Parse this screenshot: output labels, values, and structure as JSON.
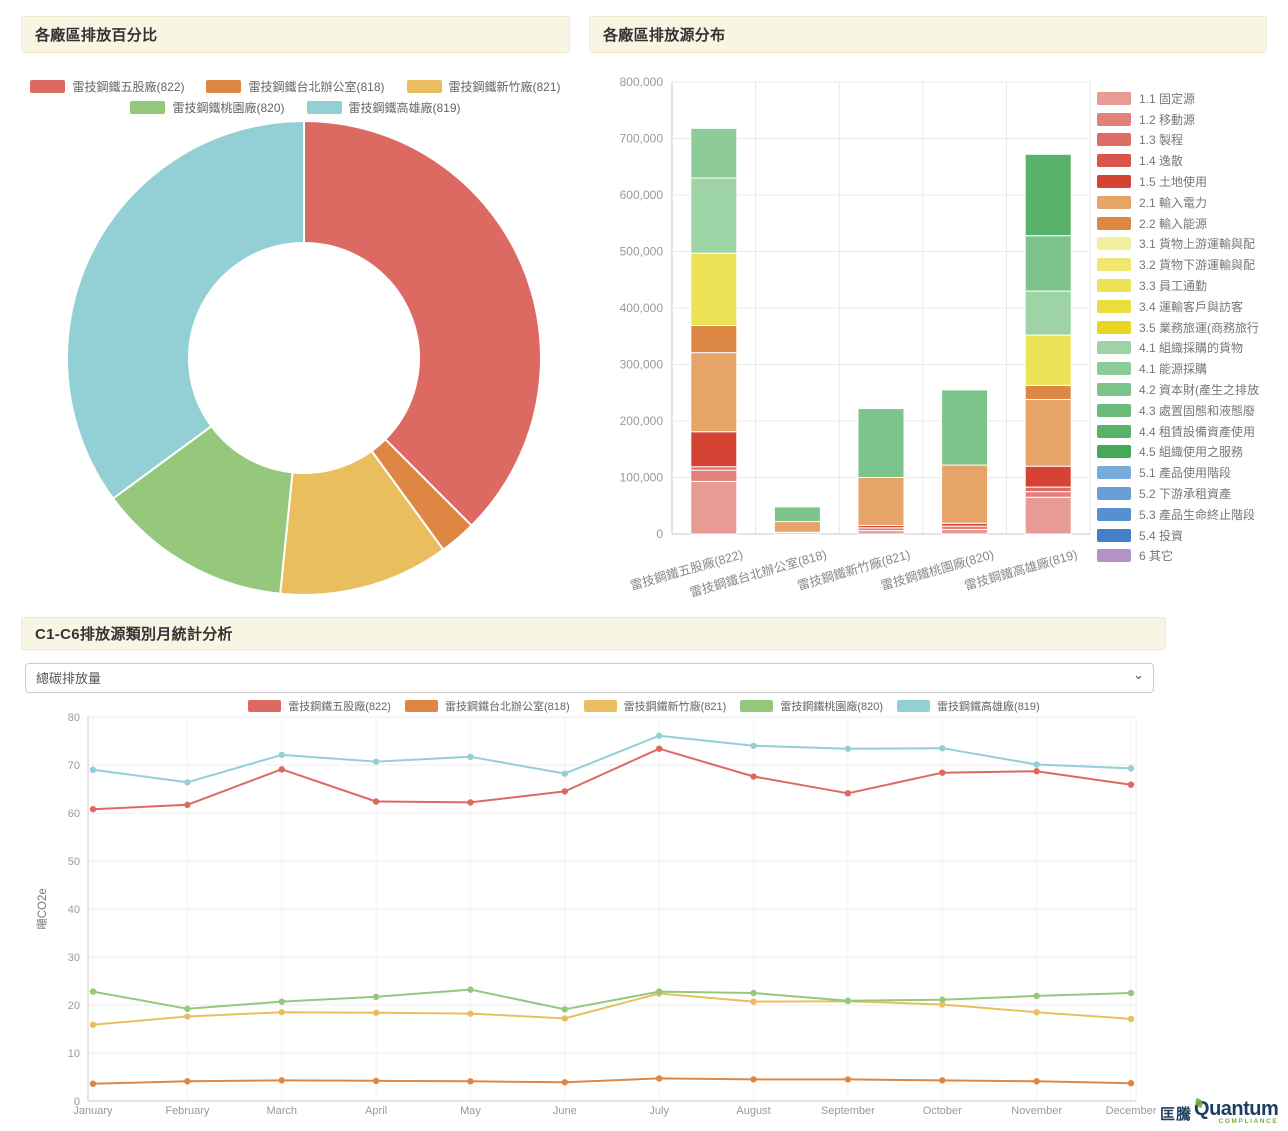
{
  "panels": {
    "donut": {
      "title": "各廠區排放百分比"
    },
    "bars": {
      "title": "各廠區排放源分布"
    },
    "monthly": {
      "title": "C1-C6排放源類別月統計分析",
      "select_value": "總碳排放量"
    }
  },
  "plants": [
    {
      "name": "雷技鋼鐵五股廠(822)",
      "color": "#dd6a62"
    },
    {
      "name": "雷技鋼鐵台北辦公室(818)",
      "color": "#de8745"
    },
    {
      "name": "雷技鋼鐵新竹廠(821)",
      "color": "#e9be5e"
    },
    {
      "name": "雷技鋼鐵桃園廠(820)",
      "color": "#95c87d"
    },
    {
      "name": "雷技鋼鐵高雄廠(819)",
      "color": "#93d0d6"
    }
  ],
  "chart_data": [
    {
      "type": "pie",
      "title": "各廠區排放百分比",
      "donut": true,
      "labels": [
        "雷技鋼鐵五股廠(822)",
        "雷技鋼鐵台北辦公室(818)",
        "雷技鋼鐵新竹廠(821)",
        "雷技鋼鐵桃園廠(820)",
        "雷技鋼鐵高雄廠(819)"
      ],
      "values": [
        37.5,
        2.5,
        11.6,
        13.3,
        35.1
      ],
      "unit": "%",
      "legend_position": "top"
    },
    {
      "type": "bar",
      "stacked": true,
      "title": "各廠區排放源分布",
      "ylim": [
        0,
        800000
      ],
      "ytick_step": 100000,
      "grid": true,
      "legend_position": "right",
      "categories": [
        "雷技鋼鐵五股廠(822)",
        "雷技鋼鐵台北辦公室(818)",
        "雷技鋼鐵新竹廠(821)",
        "雷技鋼鐵桃園廠(820)",
        "雷技鋼鐵高雄廠(819)"
      ],
      "legend": [
        {
          "name": "1.1 固定源",
          "color": "#e89a94"
        },
        {
          "name": "1.2 移動源",
          "color": "#e3807a"
        },
        {
          "name": "1.3 製程",
          "color": "#de6b64"
        },
        {
          "name": "1.4 逸散",
          "color": "#d9544c"
        },
        {
          "name": "1.5 土地使用",
          "color": "#d44334"
        },
        {
          "name": "2.1 輸入電力",
          "color": "#e7a469"
        },
        {
          "name": "2.2 輸入能源",
          "color": "#dd8745"
        },
        {
          "name": "3.1 貨物上游運輸與配",
          "color": "#f2efa0"
        },
        {
          "name": "3.2 貨物下游運輸與配",
          "color": "#efe771"
        },
        {
          "name": "3.3 員工通勤",
          "color": "#ece256"
        },
        {
          "name": "3.4 運輸客戶與訪客",
          "color": "#eadd3e"
        },
        {
          "name": "3.5 業務旅運(商務旅行",
          "color": "#e7d723"
        },
        {
          "name": "4.1 組織採購的貨物",
          "color": "#9ed3a6"
        },
        {
          "name": "4.1 能源採購",
          "color": "#8dcb99"
        },
        {
          "name": "4.2 資本財(產生之排放",
          "color": "#7cc48b"
        },
        {
          "name": "4.3 處置固態和液態廢",
          "color": "#6abb7b"
        },
        {
          "name": "4.4 租賃設備資產使用",
          "color": "#58b269"
        },
        {
          "name": "4.5 組織使用之服務",
          "color": "#46a957"
        },
        {
          "name": "5.1 產品使用階段",
          "color": "#78abdd"
        },
        {
          "name": "5.2 下游承租資產",
          "color": "#699ed7"
        },
        {
          "name": "5.3 產品生命終止階段",
          "color": "#5590d0"
        },
        {
          "name": "5.4 投資",
          "color": "#4480c8"
        },
        {
          "name": "6 其它",
          "color": "#b592c6"
        }
      ],
      "bars": [
        {
          "category": "雷技鋼鐵五股廠(822)",
          "segments": [
            {
              "source": "1.1 固定源",
              "value": 93000
            },
            {
              "source": "1.2 移動源",
              "value": 20000
            },
            {
              "source": "1.3 製程",
              "value": 6000
            },
            {
              "source": "1.5 土地使用",
              "value": 62000
            },
            {
              "source": "2.1 輸入電力",
              "value": 140000
            },
            {
              "source": "2.2 輸入能源",
              "value": 48000
            },
            {
              "source": "3.3 員工通勤",
              "value": 128000
            },
            {
              "source": "4.1 組織採購的貨物",
              "value": 133000
            },
            {
              "source": "4.1 能源採購",
              "value": 88000
            }
          ]
        },
        {
          "category": "雷技鋼鐵台北辦公室(818)",
          "segments": [
            {
              "source": "1.1 固定源",
              "value": 3000
            },
            {
              "source": "2.1 輸入電力",
              "value": 19000
            },
            {
              "source": "4.2 資本財(產生之排放",
              "value": 26000
            }
          ]
        },
        {
          "category": "雷技鋼鐵新竹廠(821)",
          "segments": [
            {
              "source": "1.1 固定源",
              "value": 6000
            },
            {
              "source": "1.2 移動源",
              "value": 5000
            },
            {
              "source": "1.5 土地使用",
              "value": 4000
            },
            {
              "source": "2.1 輸入電力",
              "value": 85000
            },
            {
              "source": "4.2 資本財(產生之排放",
              "value": 122000
            }
          ]
        },
        {
          "category": "雷技鋼鐵桃園廠(820)",
          "segments": [
            {
              "source": "1.1 固定源",
              "value": 8000
            },
            {
              "source": "1.2 移動源",
              "value": 6000
            },
            {
              "source": "1.5 土地使用",
              "value": 5000
            },
            {
              "source": "2.1 輸入電力",
              "value": 103000
            },
            {
              "source": "4.2 資本財(產生之排放",
              "value": 133000
            }
          ]
        },
        {
          "category": "雷技鋼鐵高雄廠(819)",
          "segments": [
            {
              "source": "1.1 固定源",
              "value": 65000
            },
            {
              "source": "1.2 移動源",
              "value": 10000
            },
            {
              "source": "1.3 製程",
              "value": 8000
            },
            {
              "source": "1.5 土地使用",
              "value": 37000
            },
            {
              "source": "2.1 輸入電力",
              "value": 118000
            },
            {
              "source": "2.2 輸入能源",
              "value": 25000
            },
            {
              "source": "3.3 員工通勤",
              "value": 89000
            },
            {
              "source": "4.1 組織採購的貨物",
              "value": 78000
            },
            {
              "source": "4.2 資本財(產生之排放",
              "value": 98000
            },
            {
              "source": "4.4 租賃設備資產使用",
              "value": 144000
            }
          ]
        }
      ]
    },
    {
      "type": "line",
      "title": "C1-C6排放源類別月統計分析",
      "ylabel": "噸CO2e",
      "ylim": [
        0,
        80
      ],
      "ytick_step": 10,
      "grid": true,
      "legend_position": "top",
      "x": [
        "January",
        "February",
        "March",
        "April",
        "May",
        "June",
        "July",
        "August",
        "September",
        "October",
        "November",
        "December"
      ],
      "series": [
        {
          "name": "雷技鋼鐵五股廠(822)",
          "color": "#dd6a62",
          "values": [
            60.8,
            61.7,
            69.1,
            62.4,
            62.2,
            64.5,
            73.4,
            67.6,
            64.1,
            68.4,
            68.7,
            65.9
          ]
        },
        {
          "name": "雷技鋼鐵台北辦公室(818)",
          "color": "#de8745",
          "values": [
            3.6,
            4.1,
            4.3,
            4.2,
            4.1,
            3.9,
            4.7,
            4.5,
            4.5,
            4.3,
            4.1,
            3.7
          ]
        },
        {
          "name": "雷技鋼鐵新竹廠(821)",
          "color": "#e9be5e",
          "values": [
            15.9,
            17.6,
            18.5,
            18.4,
            18.2,
            17.2,
            22.4,
            20.7,
            20.8,
            20.1,
            18.5,
            17.1
          ]
        },
        {
          "name": "雷技鋼鐵桃園廠(820)",
          "color": "#95c87d",
          "values": [
            22.8,
            19.2,
            20.7,
            21.7,
            23.2,
            19.1,
            22.8,
            22.5,
            20.9,
            21.1,
            21.9,
            22.5
          ]
        },
        {
          "name": "雷技鋼鐵高雄廠(819)",
          "color": "#93d0d6",
          "values": [
            69.0,
            66.4,
            72.1,
            70.7,
            71.7,
            68.2,
            76.1,
            74.0,
            73.4,
            73.5,
            70.1,
            69.3
          ]
        }
      ]
    }
  ],
  "logo": {
    "cjk": "匡騰",
    "latin": "Quantum",
    "sub": "COMPLIANCE"
  }
}
